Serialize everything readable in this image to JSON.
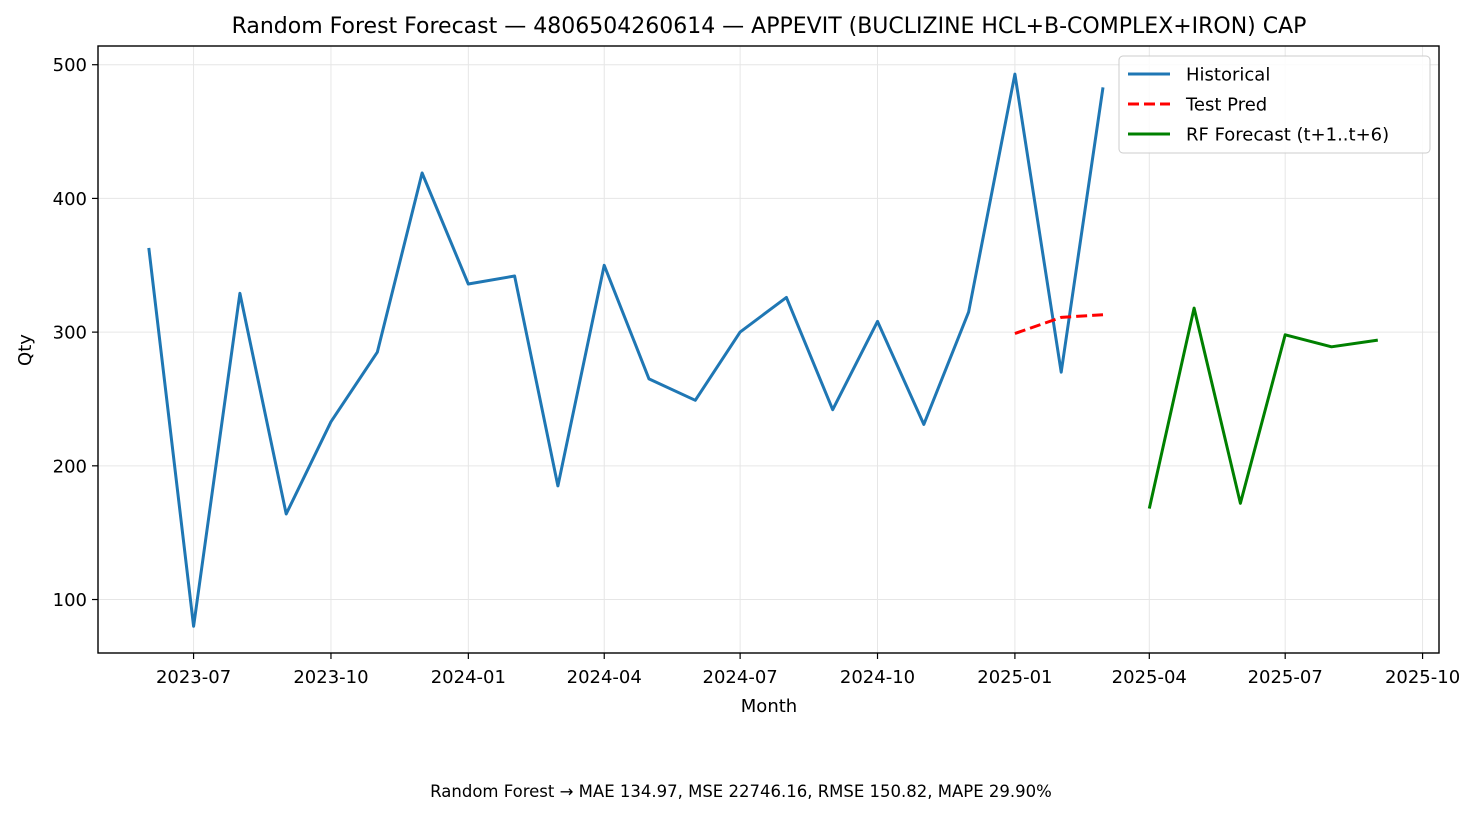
{
  "chart_data": {
    "type": "line",
    "title": "Random Forest Forecast — 4806504260614 — APPEVIT (BUCLIZINE HCL+B-COMPLEX+IRON) CAP",
    "xlabel": "Month",
    "ylabel": "Qty",
    "xlim": [
      "2023-04-28",
      "2025-10-12"
    ],
    "ylim": [
      60,
      514
    ],
    "grid": true,
    "legend_position": "top-right",
    "x_ticks": [
      "2023-07",
      "2023-10",
      "2024-01",
      "2024-04",
      "2024-07",
      "2024-10",
      "2025-01",
      "2025-04",
      "2025-07",
      "2025-10"
    ],
    "y_ticks": [
      100,
      200,
      300,
      400,
      500
    ],
    "series": [
      {
        "name": "Historical",
        "color": "#1f77b4",
        "style": "solid",
        "x": [
          "2023-06-01",
          "2023-07-01",
          "2023-08-01",
          "2023-09-01",
          "2023-10-01",
          "2023-11-01",
          "2023-12-01",
          "2024-01-01",
          "2024-02-01",
          "2024-03-01",
          "2024-04-01",
          "2024-05-01",
          "2024-06-01",
          "2024-07-01",
          "2024-08-01",
          "2024-09-01",
          "2024-10-01",
          "2024-11-01",
          "2024-12-01",
          "2025-01-01",
          "2025-02-01",
          "2025-03-01"
        ],
        "values": [
          363,
          80,
          329,
          164,
          233,
          285,
          419,
          336,
          342,
          185,
          350,
          265,
          249,
          300,
          326,
          242,
          308,
          231,
          315,
          493,
          270,
          483
        ]
      },
      {
        "name": "Test Pred",
        "color": "#ff0000",
        "style": "dashed",
        "x": [
          "2025-01-01",
          "2025-02-01",
          "2025-03-01"
        ],
        "values": [
          299,
          311,
          313
        ]
      },
      {
        "name": "RF Forecast (t+1..t+6)",
        "color": "#008000",
        "style": "solid",
        "x": [
          "2025-04-01",
          "2025-05-01",
          "2025-06-01",
          "2025-07-01",
          "2025-08-01",
          "2025-09-01"
        ],
        "values": [
          168,
          318,
          172,
          298,
          289,
          294
        ]
      }
    ]
  },
  "footer": "Random Forest → MAE 134.97, MSE 22746.16, RMSE 150.82, MAPE 29.90%"
}
